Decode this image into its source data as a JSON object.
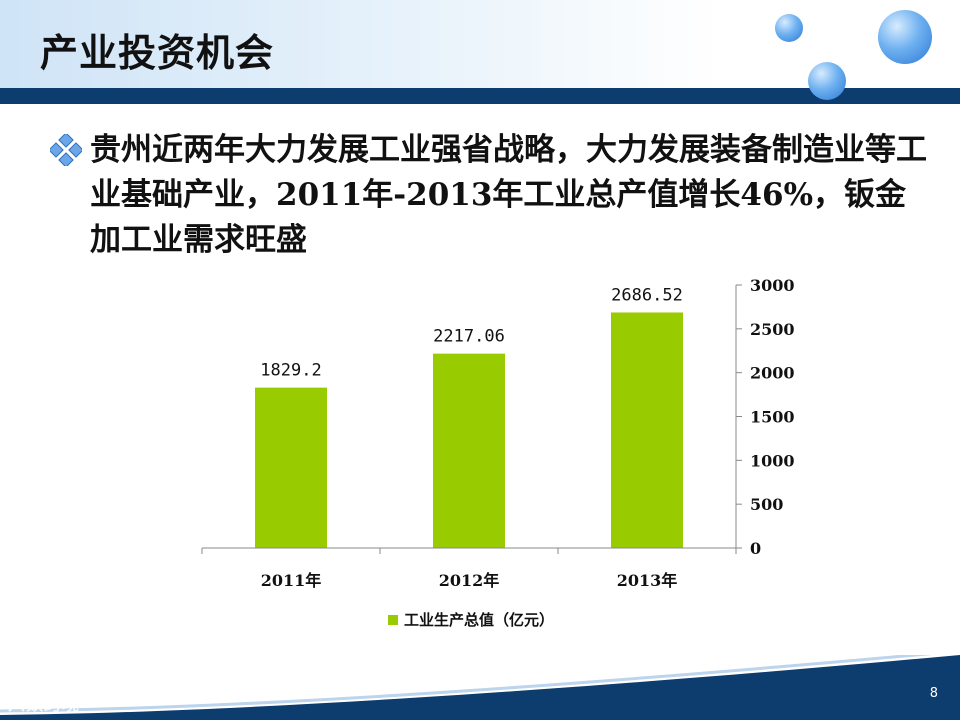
{
  "slide": {
    "title": "产业投资机会",
    "bullet": "贵州近两年大力发展工业强省战略，大力发展装备制造业等工业基础产业，2011年-2013年工业总产值增长46%，钣金加工业需求旺盛",
    "page_number": "8",
    "watermark": "六数跨境"
  },
  "colors": {
    "header_bar": "#0d3c6e",
    "bar": "#99cc00",
    "bubble": "#2a78d6"
  },
  "chart_data": {
    "type": "bar",
    "categories": [
      "2011年",
      "2012年",
      "2013年"
    ],
    "series": [
      {
        "name": "工业生产总值（亿元）",
        "values": [
          1829.2,
          2217.06,
          2686.52
        ]
      }
    ],
    "data_labels": [
      "1829.2",
      "2217.06",
      "2686.52"
    ],
    "yaxis_position": "right",
    "yticks": [
      0,
      500,
      1000,
      1500,
      2000,
      2500,
      3000
    ],
    "ylim": [
      0,
      3000
    ],
    "grid": false,
    "legend": "bottom"
  }
}
